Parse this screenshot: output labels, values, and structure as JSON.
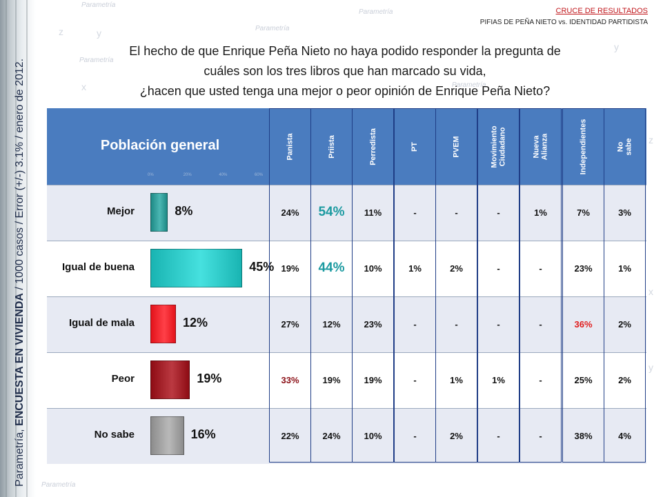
{
  "header": {
    "section": "CRUCE DE RESULTADOS",
    "subtitle_a": "PIFIAS DE PEÑA NIETO",
    "subtitle_vs": "vs.",
    "subtitle_b": "IDENTIDAD PARTIDISTA"
  },
  "watermark": {
    "brand": "Parametría",
    "letters": [
      "x",
      "y",
      "z"
    ]
  },
  "source_note": {
    "prefix": "Parametría, ",
    "bold": "ENCUESTA EN VIVIENDA",
    "suffix": " / 1000 casos / Error (+/-) 3.1% / enero de 2012."
  },
  "question": {
    "line1": "El hecho de que Enrique Peña Nieto no haya podido responder la pregunta de",
    "line2": "cuáles son los tres libros que han marcado su vida,",
    "line3": "¿hacen que usted tenga una mejor o peor opinión de Enrique Peña Nieto?"
  },
  "chart_data": {
    "type": "table",
    "title": "Población general",
    "bar_axis_ticks": [
      "0%",
      "20%",
      "40%",
      "60%"
    ],
    "bar_axis_max": 60,
    "rows": [
      {
        "label": "Mejor",
        "value": 8,
        "value_label": "8%",
        "color": "#1e8a86"
      },
      {
        "label": "Igual de buena",
        "value": 45,
        "value_label": "45%",
        "color": "#19b4b2"
      },
      {
        "label": "Igual de mala",
        "value": 12,
        "value_label": "12%",
        "color": "#e3131b"
      },
      {
        "label": "Peor",
        "value": 19,
        "value_label": "19%",
        "color": "#8e0c14"
      },
      {
        "label": "No sabe",
        "value": 16,
        "value_label": "16%",
        "color": "#8c8c8c"
      }
    ],
    "columns": [
      "Panista",
      "Priista",
      "Perredista",
      "PT",
      "PVEM",
      "Movimiento Ciudadano",
      "Nueva Alianza",
      "Independientes",
      "No sabe"
    ],
    "cells": [
      [
        "24%",
        "54%",
        "11%",
        "-",
        "-",
        "-",
        "1%",
        "7%",
        "3%"
      ],
      [
        "19%",
        "44%",
        "10%",
        "1%",
        "2%",
        "-",
        "-",
        "23%",
        "1%"
      ],
      [
        "27%",
        "12%",
        "23%",
        "-",
        "-",
        "-",
        "-",
        "36%",
        "2%"
      ],
      [
        "33%",
        "19%",
        "19%",
        "-",
        "1%",
        "1%",
        "-",
        "25%",
        "2%"
      ],
      [
        "22%",
        "24%",
        "10%",
        "-",
        "2%",
        "-",
        "-",
        "38%",
        "4%"
      ]
    ],
    "highlights": {
      "teal_large": [
        [
          0,
          1
        ],
        [
          1,
          1
        ]
      ],
      "red": [
        [
          2,
          7
        ]
      ],
      "dark_red": [
        [
          3,
          0
        ]
      ]
    }
  }
}
